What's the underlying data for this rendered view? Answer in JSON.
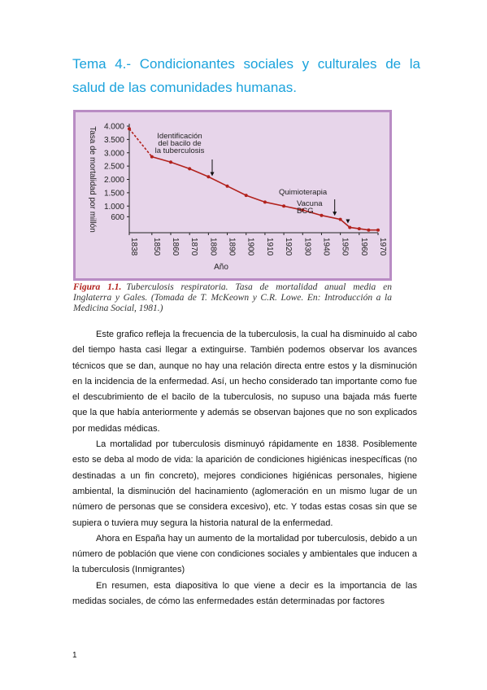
{
  "heading": "Tema 4.- Condicionantes sociales y culturales de la salud de las comunidades humanas.",
  "figure": {
    "caption_label": "Figura 1.1.",
    "caption_text": "Tuberculosis respiratoria. Tasa de mortalidad anual media en Inglaterra y Gales. (Tomada de T. McKeown y C.R. Lowe. En: Introducción a la Medicina Social, 1981.)",
    "accent_color": "#b2221d",
    "background_color": "#e7d5ea"
  },
  "chart_data": {
    "type": "line",
    "title": "",
    "xlabel": "Año",
    "ylabel": "Tasa de mortalidad por millón",
    "xlim": [
      1838,
      1970
    ],
    "ylim": [
      0,
      4000
    ],
    "y_ticks": [
      {
        "value": 600,
        "label": "600"
      },
      {
        "value": 1000,
        "label": "1.000"
      },
      {
        "value": 1500,
        "label": "1.500"
      },
      {
        "value": 2000,
        "label": "2.000"
      },
      {
        "value": 2500,
        "label": "2.500"
      },
      {
        "value": 3000,
        "label": "3.000"
      },
      {
        "value": 3500,
        "label": "3.500"
      },
      {
        "value": 4000,
        "label": "4.000"
      }
    ],
    "x_ticks": [
      1838,
      1850,
      1860,
      1870,
      1880,
      1890,
      1900,
      1910,
      1920,
      1930,
      1940,
      1950,
      1960,
      1970
    ],
    "series": [
      {
        "x": [
          1838,
          1850,
          1860,
          1870,
          1880,
          1890,
          1900,
          1910,
          1920,
          1930,
          1940,
          1950,
          1955,
          1960,
          1965,
          1970
        ],
        "y": [
          3900,
          2850,
          2650,
          2400,
          2100,
          1750,
          1400,
          1150,
          1000,
          850,
          650,
          500,
          200,
          150,
          100,
          100
        ]
      }
    ],
    "dashed_until": 1850,
    "annotations": [
      {
        "label_lines": [
          "Identificación",
          "del bacilo de",
          "la tuberculosis"
        ],
        "x": 1882
      },
      {
        "label_lines": [
          "Quimioterapia"
        ],
        "x": 1947
      },
      {
        "label_lines": [
          "Vacuna",
          "BCG"
        ],
        "x": 1954
      }
    ],
    "color": "#b2221d"
  },
  "body": {
    "paragraphs": [
      "Este grafico refleja la frecuencia de la tuberculosis, la cual ha disminuido al cabo del tiempo hasta casi llegar a extinguirse. También podemos observar los avances técnicos que se dan, aunque no hay una relación directa entre estos y la disminución en la incidencia de la enfermedad. Así, un hecho considerado tan importante como fue el descubrimiento de el bacilo de la tuberculosis, no supuso una bajada más fuerte que la que había anteriormente y además se observan bajones que no son explicados por medidas médicas.",
      "La mortalidad por tuberculosis disminuyó rápidamente en 1838. Posiblemente esto se deba al modo de vida: la aparición de condiciones higiénicas inespecíficas (no destinadas a un fin concreto), mejores condiciones higiénicas personales, higiene ambiental, la disminución del hacinamiento (aglomeración en un mismo lugar de un número de personas que se considera excesivo), etc. Y todas estas cosas sin que se supiera o tuviera muy segura la historia natural de la enfermedad.",
      "Ahora en España hay un aumento de la mortalidad por tuberculosis, debido a un número de población que viene con condiciones sociales y ambientales que inducen a la tuberculosis (Inmigrantes)",
      "En resumen, esta diapositiva lo que viene a decir es la importancia de las medidas sociales, de cómo las enfermedades están determinadas por factores"
    ]
  },
  "page_number": "1"
}
